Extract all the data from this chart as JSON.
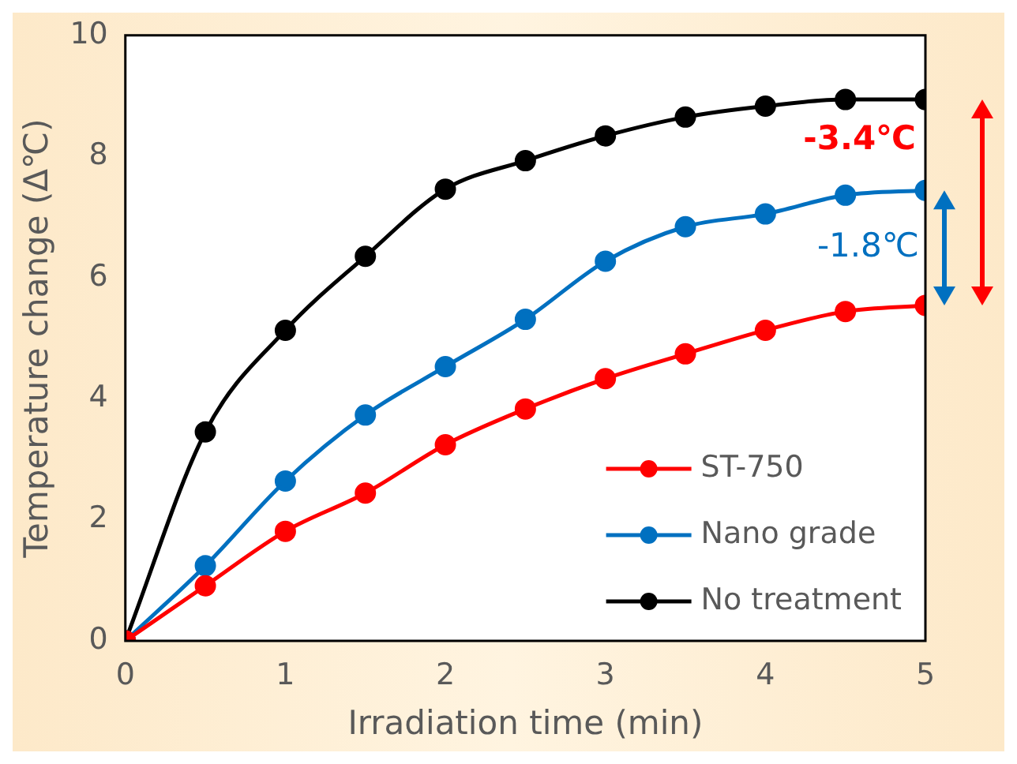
{
  "chart_data": {
    "type": "line",
    "xlabel": "Irradiation time (min)",
    "ylabel": "Temperature change (Δ℃)",
    "x": [
      0,
      0.5,
      1,
      1.5,
      2,
      2.5,
      3,
      3.5,
      4,
      4.5,
      5
    ],
    "xlim": [
      0,
      5
    ],
    "xticks": [
      0,
      1,
      2,
      3,
      4,
      5
    ],
    "ylim": [
      0,
      10
    ],
    "yticks": [
      0,
      2,
      4,
      6,
      8,
      10
    ],
    "series": [
      {
        "name": "ST-750",
        "color": "#ff0000",
        "values": [
          0,
          0.91,
          1.81,
          2.44,
          3.24,
          3.83,
          4.33,
          4.74,
          5.13,
          5.44,
          5.54
        ]
      },
      {
        "name": "Nano grade",
        "color": "#0070c0",
        "values": [
          0,
          1.24,
          2.64,
          3.73,
          4.53,
          5.31,
          6.27,
          6.84,
          7.05,
          7.36,
          7.44
        ]
      },
      {
        "name": "No treatment",
        "color": "#000000",
        "values": [
          0,
          3.45,
          5.13,
          6.35,
          7.46,
          7.93,
          8.34,
          8.65,
          8.83,
          8.94,
          8.94
        ]
      }
    ],
    "annotations": [
      "-3.4℃",
      "-1.8℃"
    ],
    "marker": "circle",
    "line_style": "solid",
    "grid": false,
    "legend": "bottom right"
  }
}
